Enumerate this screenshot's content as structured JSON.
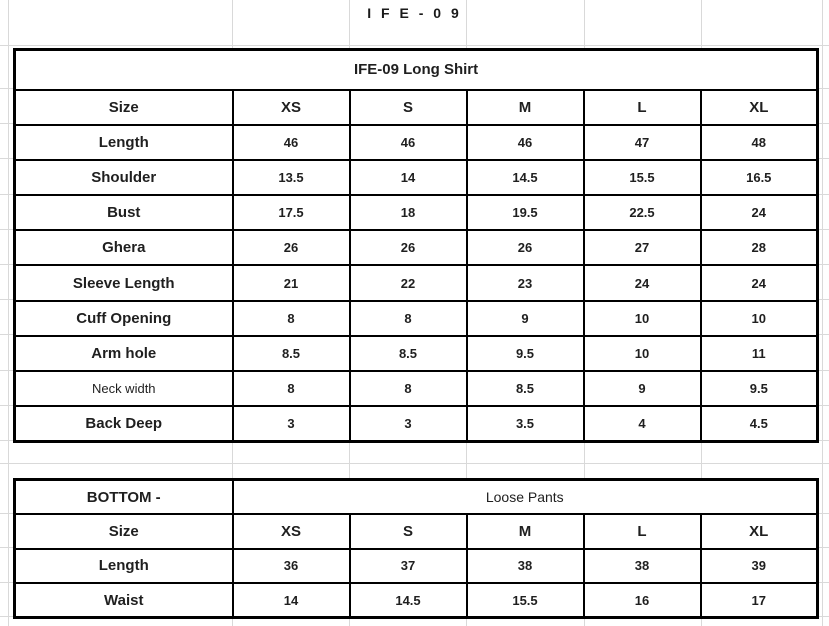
{
  "page_title": "I F E - 0 9",
  "shirt_table": {
    "title": "IFE-09 Long Shirt",
    "size_header": "Size",
    "sizes": [
      "XS",
      "S",
      "M",
      "L",
      "XL"
    ],
    "rows": [
      {
        "label": "Length",
        "values": [
          "46",
          "46",
          "46",
          "47",
          "48"
        ]
      },
      {
        "label": "Shoulder",
        "values": [
          "13.5",
          "14",
          "14.5",
          "15.5",
          "16.5"
        ]
      },
      {
        "label": "Bust",
        "values": [
          "17.5",
          "18",
          "19.5",
          "22.5",
          "24"
        ]
      },
      {
        "label": "Ghera",
        "values": [
          "26",
          "26",
          "26",
          "27",
          "28"
        ]
      },
      {
        "label": "Sleeve Length",
        "values": [
          "21",
          "22",
          "23",
          "24",
          "24"
        ]
      },
      {
        "label": "Cuff Opening",
        "values": [
          "8",
          "8",
          "9",
          "10",
          "10"
        ]
      },
      {
        "label": "Arm hole",
        "values": [
          "8.5",
          "8.5",
          "9.5",
          "10",
          "11"
        ]
      },
      {
        "label": "Neck width",
        "values": [
          "8",
          "8",
          "8.5",
          "9",
          "9.5"
        ],
        "small": true
      },
      {
        "label": "Back Deep",
        "values": [
          "3",
          "3",
          "3.5",
          "4",
          "4.5"
        ]
      }
    ]
  },
  "bottom_table": {
    "label_header": "BOTTOM -",
    "title": "Loose Pants",
    "size_header": "Size",
    "sizes": [
      "XS",
      "S",
      "M",
      "L",
      "XL"
    ],
    "rows": [
      {
        "label": "Length",
        "values": [
          "36",
          "37",
          "38",
          "38",
          "39"
        ]
      },
      {
        "label": "Waist",
        "values": [
          "14",
          "14.5",
          "15.5",
          "16",
          "17"
        ]
      }
    ]
  },
  "colors": {
    "border": "#000000",
    "gridline": "#d9d9d9",
    "text": "#1f1f1f",
    "background": "#ffffff"
  }
}
